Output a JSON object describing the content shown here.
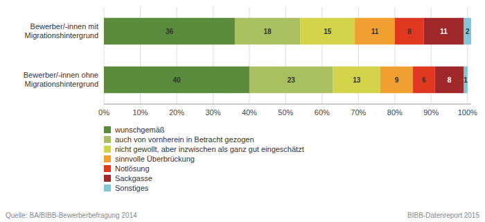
{
  "chart_data": {
    "type": "bar",
    "orientation": "horizontal",
    "stacked": true,
    "data_labels": true,
    "grid": true,
    "legend": "bottom",
    "categories": [
      "Bewerber/-innen mit\nMigrationshintergrund",
      "Bewerber/-innen ohne\nMigrationshintergrund"
    ],
    "series": [
      {
        "name": "wunschgemäß",
        "values": [
          36,
          40
        ],
        "color": "#5a8a3c"
      },
      {
        "name": "auch von vornherein in Betracht gezogen",
        "values": [
          18,
          23
        ],
        "color": "#a8c060"
      },
      {
        "name": "nicht gewollt, aber inzwischen als ganz gut eingeschätzt",
        "values": [
          15,
          13
        ],
        "color": "#d4d44a"
      },
      {
        "name": "sinnvolle Überbrückung",
        "values": [
          11,
          9
        ],
        "color": "#f0a030"
      },
      {
        "name": "Notlösung",
        "values": [
          8,
          6
        ],
        "color": "#e03820"
      },
      {
        "name": "Sackgasse",
        "values": [
          11,
          8
        ],
        "color": "#a02828"
      },
      {
        "name": "Sonstiges",
        "values": [
          2,
          1
        ],
        "color": "#80c8d8"
      }
    ],
    "xlim": [
      0,
      101
    ],
    "xticks": [
      {
        "value": 0,
        "label": "0%"
      },
      {
        "value": 10,
        "label": "10%"
      },
      {
        "value": 20,
        "label": "20%"
      },
      {
        "value": 30,
        "label": "30%"
      },
      {
        "value": 40,
        "label": "40%"
      },
      {
        "value": 50,
        "label": "50%"
      },
      {
        "value": 60,
        "label": "60%"
      },
      {
        "value": 70,
        "label": "70%"
      },
      {
        "value": 80,
        "label": "80%"
      },
      {
        "value": 90,
        "label": "90%"
      },
      {
        "value": 100,
        "label": "100%"
      }
    ],
    "annotations": [
      "Quelle: BA/BIBB-Bewerberbefragung 2014",
      "BIBB-Datenreport 2015"
    ]
  }
}
